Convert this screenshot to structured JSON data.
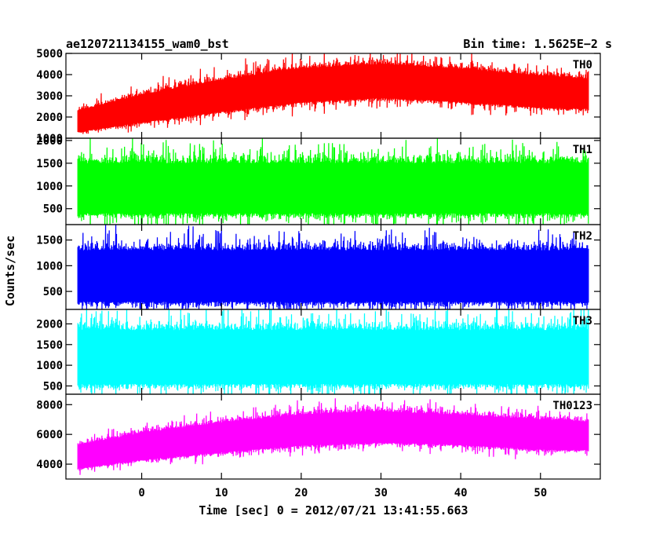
{
  "chart_data": {
    "type": "line",
    "title": "ae120721134155_wam0_bst",
    "subtitle": "Bin time: 1.5625E−2 s",
    "xlabel": "Time [sec] 0 = 2012/07/21 13:41:55.663",
    "ylabel": "Counts/sec",
    "xlim": [
      -9.5,
      57.5
    ],
    "x_ticks": [
      "0",
      "10",
      "20",
      "30",
      "40",
      "50"
    ],
    "x_start": -8.0,
    "x_end": 56.0,
    "grid": false,
    "panels": [
      {
        "name": "TH0",
        "color": "#ff0000",
        "ylim": [
          1000,
          5000
        ],
        "y_ticks": [
          "1000",
          "2000",
          "3000",
          "4000",
          "5000"
        ],
        "envelope_x": [
          -8,
          0,
          10,
          20,
          30,
          40,
          50,
          56
        ],
        "envelope_mean": [
          1800,
          2400,
          3000,
          3500,
          3700,
          3500,
          3200,
          3100
        ],
        "envelope_spread": [
          500,
          650,
          750,
          800,
          800,
          780,
          750,
          700
        ]
      },
      {
        "name": "TH1",
        "color": "#00ff00",
        "ylim": [
          150,
          2050
        ],
        "y_ticks": [
          "500",
          "1000",
          "1500",
          "2000"
        ],
        "envelope_x": [
          -8,
          56
        ],
        "envelope_mean": [
          950,
          950
        ],
        "envelope_spread": [
          550,
          550
        ]
      },
      {
        "name": "TH2",
        "color": "#0000ff",
        "ylim": [
          150,
          1800
        ],
        "y_ticks": [
          "500",
          "1000",
          "1500"
        ],
        "envelope_x": [
          -8,
          56
        ],
        "envelope_mean": [
          800,
          800
        ],
        "envelope_spread": [
          500,
          500
        ]
      },
      {
        "name": "TH3",
        "color": "#00ffff",
        "ylim": [
          300,
          2350
        ],
        "y_ticks": [
          "500",
          "1000",
          "1500",
          "2000"
        ],
        "envelope_x": [
          -8,
          56
        ],
        "envelope_mean": [
          1200,
          1200
        ],
        "envelope_spread": [
          650,
          650
        ]
      },
      {
        "name": "TH0123",
        "color": "#ff00ff",
        "ylim": [
          3000,
          8700
        ],
        "y_ticks": [
          "4000",
          "6000",
          "8000"
        ],
        "envelope_x": [
          -8,
          0,
          10,
          20,
          30,
          40,
          50,
          56
        ],
        "envelope_mean": [
          4500,
          5200,
          5800,
          6300,
          6500,
          6300,
          6000,
          5900
        ],
        "envelope_spread": [
          800,
          900,
          1000,
          1050,
          1050,
          1000,
          1000,
          950
        ]
      }
    ]
  }
}
